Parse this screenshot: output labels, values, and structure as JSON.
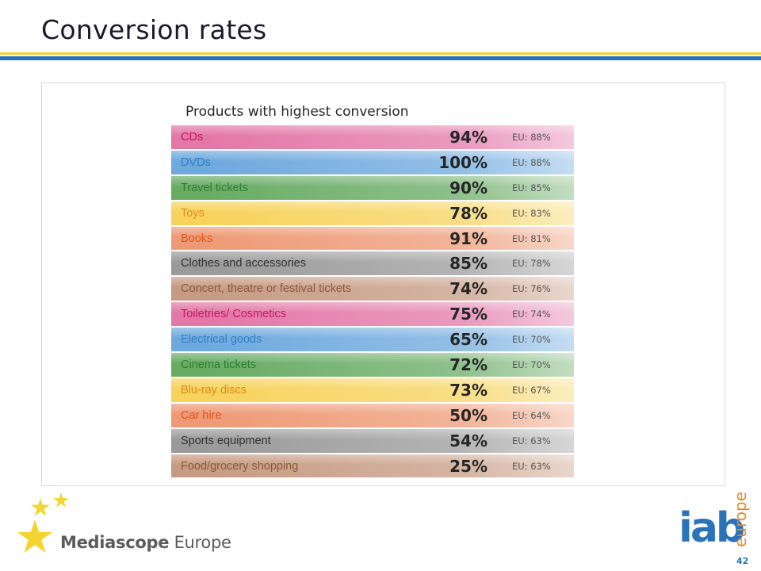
{
  "page": {
    "title": "Conversion rates",
    "page_number": "42"
  },
  "brand": {
    "mediascope_bold": "Mediascope",
    "mediascope_light": " Europe",
    "iab": "iab",
    "europe": "europe",
    "colors": {
      "yellow": "#f3d431",
      "blue": "#2a73bb",
      "orange": "#e58a2a"
    }
  },
  "chart_data": {
    "type": "table",
    "title": "Products with highest conversion",
    "rows": [
      {
        "label": "CDs",
        "value": "94%",
        "eu": "EU: 88%",
        "color": "#e377a8",
        "label_color": "#c5195f"
      },
      {
        "label": "DVDs",
        "value": "100%",
        "eu": "EU: 88%",
        "color": "#6ea9de",
        "label_color": "#2f7fc7"
      },
      {
        "label": "Travel tickets",
        "value": "90%",
        "eu": "EU: 85%",
        "color": "#68ac64",
        "label_color": "#2e7d32"
      },
      {
        "label": "Toys",
        "value": "78%",
        "eu": "EU: 83%",
        "color": "#f7d35c",
        "label_color": "#e08a1f"
      },
      {
        "label": "Books",
        "value": "91%",
        "eu": "EU: 81%",
        "color": "#ee9a76",
        "label_color": "#e2571f"
      },
      {
        "label": "Clothes and accessories",
        "value": "85%",
        "eu": "EU: 78%",
        "color": "#9a9a9a",
        "label_color": "#333333"
      },
      {
        "label": "Concert, theatre or festival tickets",
        "value": "74%",
        "eu": "EU: 76%",
        "color": "#c79b83",
        "label_color": "#8a5a3c"
      },
      {
        "label": "Toiletries/ Cosmetics",
        "value": "75%",
        "eu": "EU: 74%",
        "color": "#e377a8",
        "label_color": "#c5195f"
      },
      {
        "label": "Electrical goods",
        "value": "65%",
        "eu": "EU: 70%",
        "color": "#6ea9de",
        "label_color": "#2f7fc7"
      },
      {
        "label": "Cinema tickets",
        "value": "72%",
        "eu": "EU: 70%",
        "color": "#68ac64",
        "label_color": "#2e7d32"
      },
      {
        "label": "Blu-ray discs",
        "value": "73%",
        "eu": "EU: 67%",
        "color": "#f7d35c",
        "label_color": "#e08a1f"
      },
      {
        "label": "Car hire",
        "value": "50%",
        "eu": "EU: 64%",
        "color": "#ee9a76",
        "label_color": "#e2571f"
      },
      {
        "label": "Sports equipment",
        "value": "54%",
        "eu": "EU: 63%",
        "color": "#9a9a9a",
        "label_color": "#333333"
      },
      {
        "label": "Food/grocery shopping",
        "value": "25%",
        "eu": "EU: 63%",
        "color": "#c79b83",
        "label_color": "#8a5a3c"
      }
    ]
  }
}
